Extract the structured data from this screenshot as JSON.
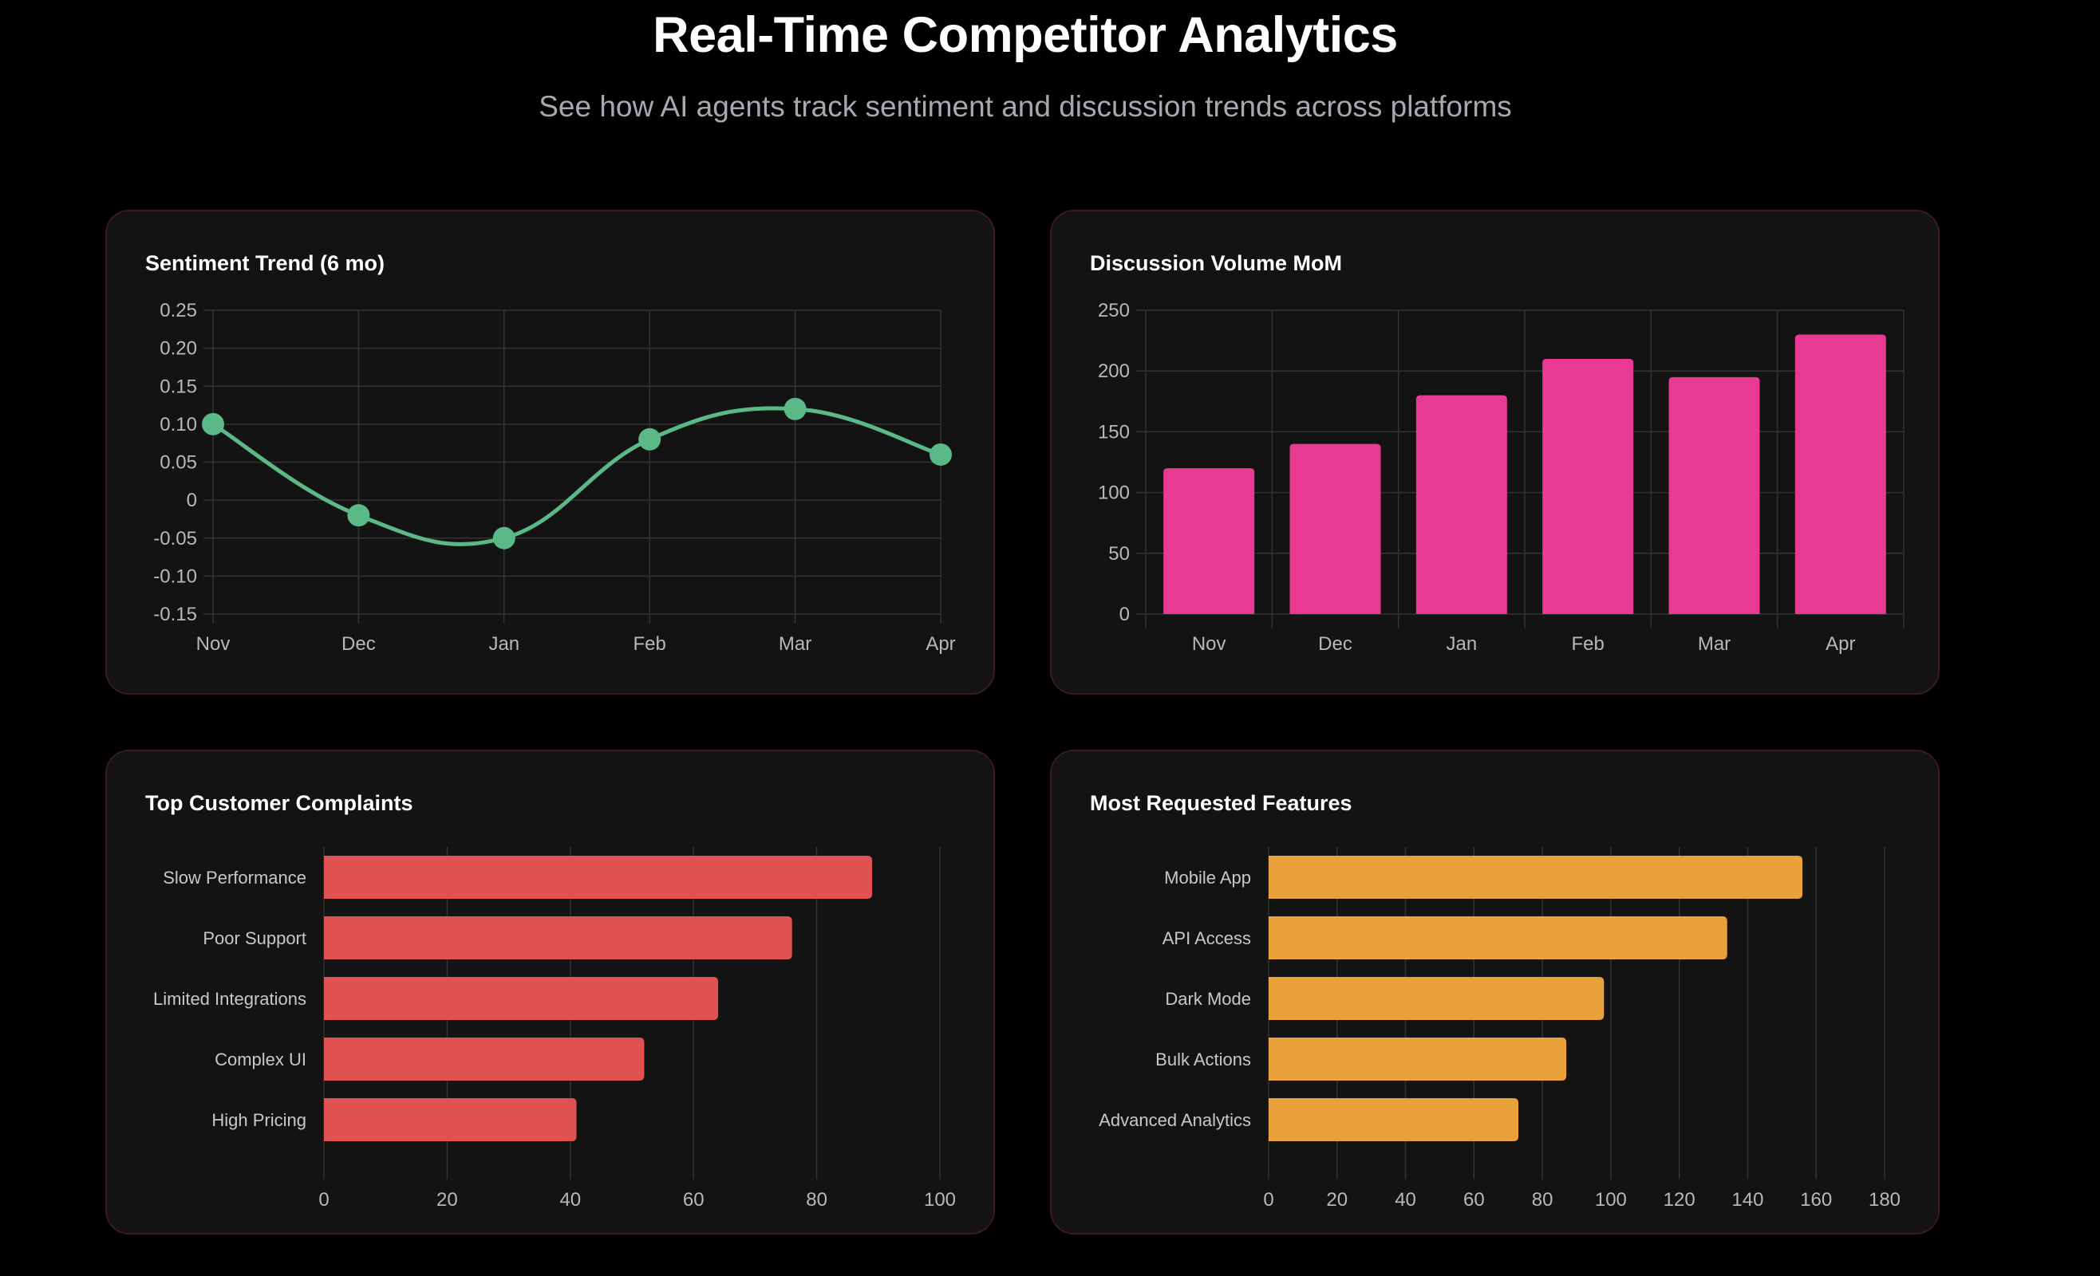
{
  "header": {
    "title": "Real-Time Competitor Analytics",
    "subtitle": "See how AI agents track sentiment and discussion trends across platforms"
  },
  "colors": {
    "sentiment_line": "#5bb887",
    "volume_bars": "#e83a92",
    "complaints_bars": "#e05252",
    "features_bars": "#e9a23b",
    "grid": "#333333"
  },
  "chart_data": [
    {
      "id": "sentiment",
      "type": "line",
      "title": "Sentiment Trend (6 mo)",
      "categories": [
        "Nov",
        "Dec",
        "Jan",
        "Feb",
        "Mar",
        "Apr"
      ],
      "values": [
        0.1,
        -0.02,
        -0.05,
        0.08,
        0.12,
        0.06
      ],
      "ylim": [
        -0.15,
        0.25
      ],
      "yticks": [
        "0.25",
        "0.20",
        "0.15",
        "0.10",
        "0.05",
        "0",
        "-0.05",
        "-0.10",
        "-0.15"
      ],
      "grid": true,
      "smooth": true
    },
    {
      "id": "volume",
      "type": "bar",
      "title": "Discussion Volume MoM",
      "categories": [
        "Nov",
        "Dec",
        "Jan",
        "Feb",
        "Mar",
        "Apr"
      ],
      "values": [
        120,
        140,
        180,
        210,
        195,
        230
      ],
      "ylim": [
        0,
        250
      ],
      "yticks": [
        "250",
        "200",
        "150",
        "100",
        "50",
        "0"
      ],
      "grid": true
    },
    {
      "id": "complaints",
      "type": "bar",
      "orientation": "horizontal",
      "title": "Top Customer Complaints",
      "categories": [
        "Slow Performance",
        "Poor Support",
        "Limited Integrations",
        "Complex UI",
        "High Pricing"
      ],
      "values": [
        89,
        76,
        64,
        52,
        41
      ],
      "xlim": [
        0,
        100
      ],
      "xticks": [
        "0",
        "20",
        "40",
        "60",
        "80",
        "100"
      ],
      "grid": true
    },
    {
      "id": "features",
      "type": "bar",
      "orientation": "horizontal",
      "title": "Most Requested Features",
      "categories": [
        "Mobile App",
        "API Access",
        "Dark Mode",
        "Bulk Actions",
        "Advanced Analytics"
      ],
      "values": [
        156,
        134,
        98,
        87,
        73
      ],
      "xlim": [
        0,
        180
      ],
      "xticks": [
        "0",
        "20",
        "40",
        "60",
        "80",
        "100",
        "120",
        "140",
        "160",
        "180"
      ],
      "grid": true
    }
  ]
}
